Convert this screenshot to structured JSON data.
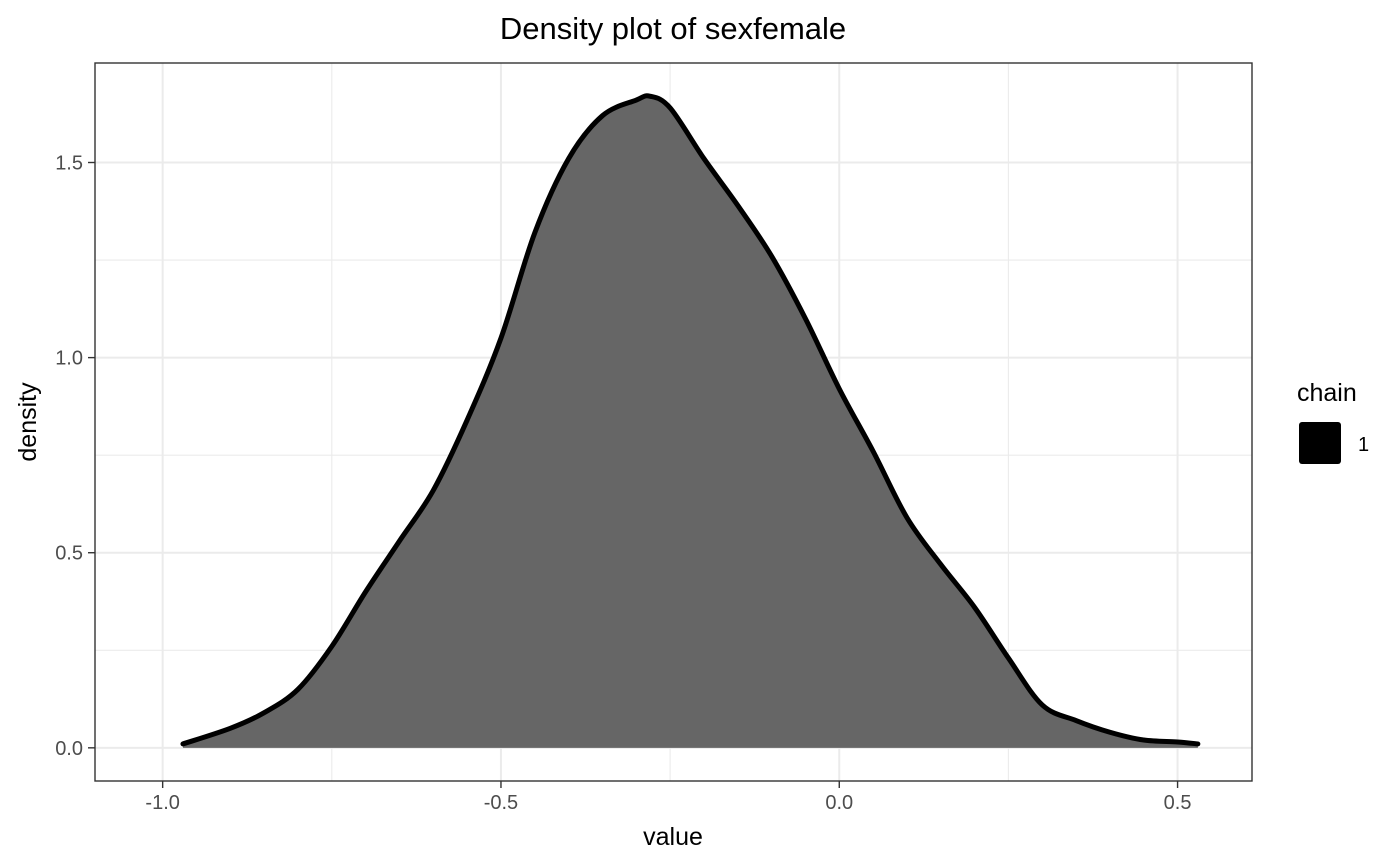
{
  "chart_data": {
    "type": "area",
    "title": "Density plot of  sexfemale",
    "xlabel": "value",
    "ylabel": "density",
    "xlim": [
      -1.1,
      0.61
    ],
    "ylim": [
      -0.085,
      1.755
    ],
    "x_ticks": [
      -1.0,
      -0.5,
      0.0,
      0.5
    ],
    "x_tick_labels": [
      "-1.0",
      "-0.5",
      "0.0",
      "0.5"
    ],
    "y_ticks": [
      0.0,
      0.5,
      1.0,
      1.5
    ],
    "y_tick_labels": [
      "0.0",
      "0.5",
      "1.0",
      "1.5"
    ],
    "grid": true,
    "legend": {
      "title": "chain",
      "position": "right",
      "entries": [
        "1"
      ]
    },
    "colors": {
      "fill": "#666666",
      "line": "#000000",
      "panel_border": "#333333",
      "grid": "#ebebeb",
      "legend_key": "#000000"
    },
    "series": [
      {
        "x": [
          -0.97,
          -0.9,
          -0.85,
          -0.8,
          -0.75,
          -0.7,
          -0.65,
          -0.6,
          -0.55,
          -0.5,
          -0.45,
          -0.4,
          -0.35,
          -0.3,
          -0.28,
          -0.25,
          -0.2,
          -0.15,
          -0.1,
          -0.05,
          0.0,
          0.05,
          0.1,
          0.15,
          0.2,
          0.25,
          0.3,
          0.35,
          0.4,
          0.45,
          0.5,
          0.53
        ],
        "y": [
          0.01,
          0.05,
          0.09,
          0.15,
          0.26,
          0.4,
          0.53,
          0.66,
          0.84,
          1.05,
          1.32,
          1.51,
          1.62,
          1.66,
          1.67,
          1.64,
          1.51,
          1.39,
          1.26,
          1.1,
          0.92,
          0.76,
          0.59,
          0.47,
          0.36,
          0.23,
          0.11,
          0.07,
          0.04,
          0.02,
          0.015,
          0.01
        ]
      }
    ]
  }
}
